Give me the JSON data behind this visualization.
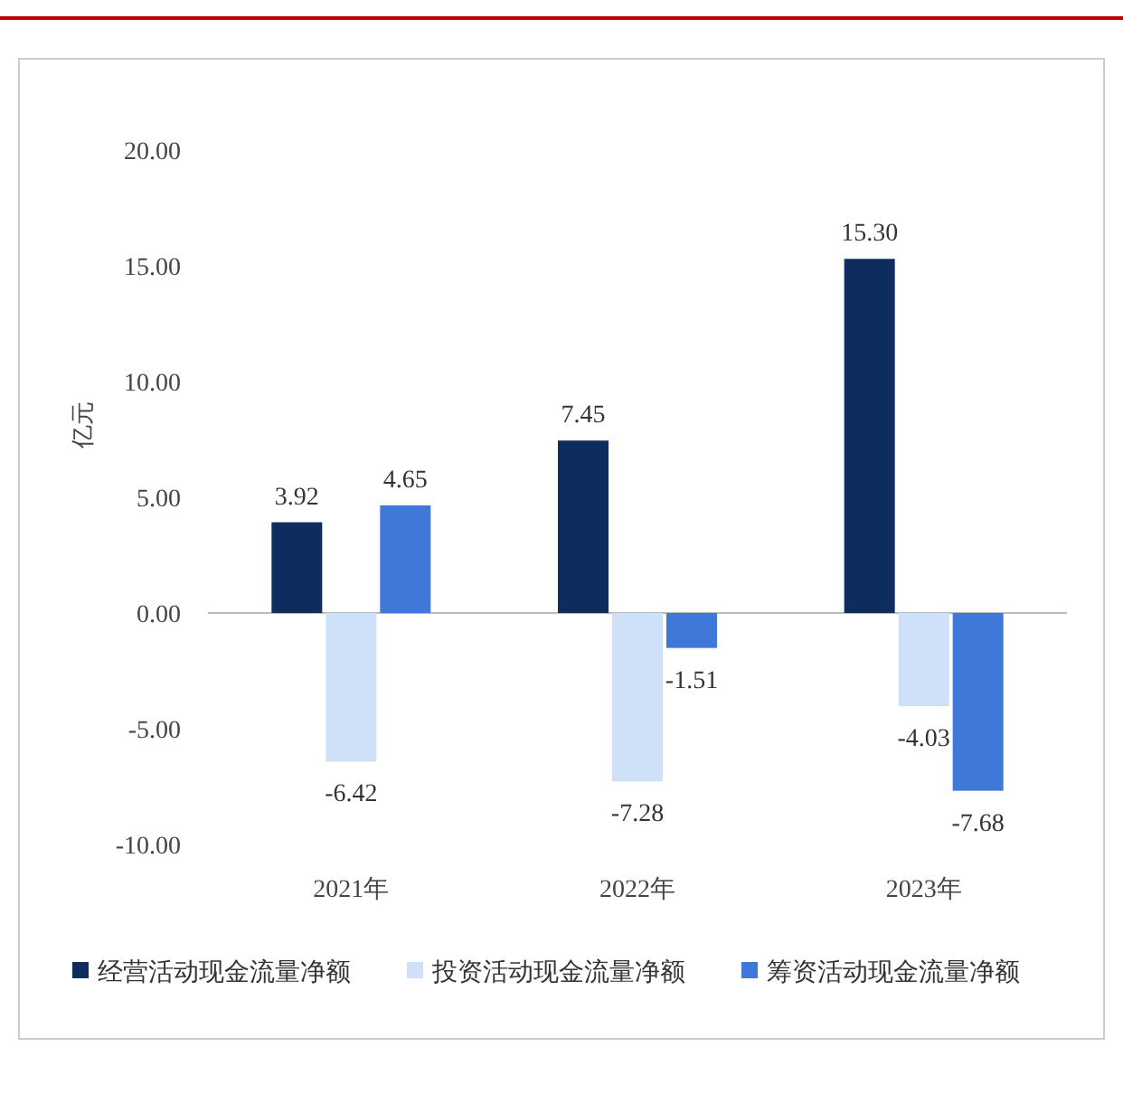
{
  "chart_data": {
    "type": "bar",
    "ylabel": "亿元",
    "categories": [
      "2021年",
      "2022年",
      "2023年"
    ],
    "series": [
      {
        "name": "经营活动现金流量净额",
        "color": "#0d2d5e",
        "values": [
          3.92,
          7.45,
          15.3
        ]
      },
      {
        "name": "投资活动现金流量净额",
        "color": "#cfe0f9",
        "values": [
          -6.42,
          -7.28,
          -4.03
        ]
      },
      {
        "name": "筹资活动现金流量净额",
        "color": "#3f78d9",
        "values": [
          4.65,
          -1.51,
          -7.68
        ]
      }
    ],
    "ylim": [
      -10,
      20
    ],
    "yticks": [
      {
        "value": -10,
        "label": "-10.00"
      },
      {
        "value": -5,
        "label": "-5.00"
      },
      {
        "value": 0,
        "label": "0.00"
      },
      {
        "value": 5,
        "label": "5.00"
      },
      {
        "value": 10,
        "label": "10.00"
      },
      {
        "value": 15,
        "label": "15.00"
      },
      {
        "value": 20,
        "label": "20.00"
      }
    ],
    "value_labels": [
      [
        "3.92",
        "7.45",
        "15.30"
      ],
      [
        "-6.42",
        "-7.28",
        "-4.03"
      ],
      [
        "4.65",
        "-1.51",
        "-7.68"
      ]
    ],
    "legend": "bottom"
  }
}
